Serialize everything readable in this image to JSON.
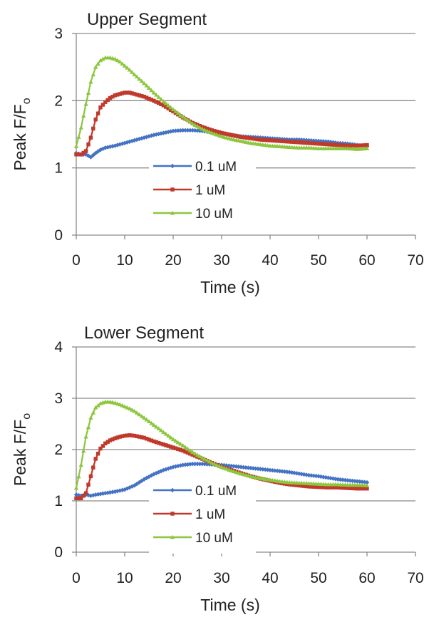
{
  "chart_data": [
    {
      "type": "line",
      "title": "Upper Segment",
      "xlabel": "Time (s)",
      "ylabel": "Peak F/F",
      "ylabel_subscript": "o",
      "xlim": [
        0,
        70
      ],
      "ylim": [
        0,
        3
      ],
      "xticks": [
        0,
        10,
        20,
        30,
        40,
        50,
        60,
        70
      ],
      "yticks": [
        0,
        1,
        2,
        3
      ],
      "grid": "horizontal",
      "legend_position": "center",
      "series": [
        {
          "name": "0.1 uM",
          "color": "#4472c4",
          "marker": "diamond",
          "x": [
            0,
            1,
            2,
            3,
            4,
            5,
            6,
            8,
            10,
            12,
            14,
            16,
            18,
            20,
            22,
            24,
            26,
            28,
            30,
            32,
            34,
            36,
            38,
            40,
            42,
            44,
            46,
            48,
            50,
            52,
            54,
            56,
            58,
            60
          ],
          "y": [
            1.22,
            1.2,
            1.2,
            1.16,
            1.22,
            1.27,
            1.3,
            1.33,
            1.37,
            1.41,
            1.45,
            1.49,
            1.52,
            1.55,
            1.56,
            1.56,
            1.55,
            1.53,
            1.51,
            1.49,
            1.47,
            1.46,
            1.45,
            1.44,
            1.43,
            1.42,
            1.42,
            1.41,
            1.4,
            1.39,
            1.37,
            1.36,
            1.34,
            1.32
          ]
        },
        {
          "name": "1 uM",
          "color": "#c0392b",
          "marker": "square",
          "x": [
            0,
            1,
            2,
            3,
            4,
            5,
            6,
            7,
            8,
            9,
            10,
            11,
            12,
            13,
            14,
            15,
            16,
            18,
            20,
            22,
            24,
            26,
            28,
            30,
            32,
            34,
            36,
            38,
            40,
            42,
            44,
            46,
            48,
            50,
            52,
            54,
            56,
            58,
            60
          ],
          "y": [
            1.2,
            1.2,
            1.25,
            1.45,
            1.72,
            1.9,
            1.98,
            2.04,
            2.08,
            2.1,
            2.12,
            2.12,
            2.1,
            2.08,
            2.06,
            2.03,
            2.0,
            1.93,
            1.84,
            1.75,
            1.67,
            1.61,
            1.56,
            1.52,
            1.49,
            1.46,
            1.44,
            1.42,
            1.41,
            1.4,
            1.39,
            1.38,
            1.37,
            1.36,
            1.35,
            1.34,
            1.33,
            1.33,
            1.34
          ]
        },
        {
          "name": "10 uM",
          "color": "#8dc63f",
          "marker": "triangle",
          "x": [
            0,
            1,
            2,
            3,
            4,
            5,
            6,
            7,
            8,
            9,
            10,
            11,
            12,
            14,
            16,
            18,
            20,
            22,
            24,
            26,
            28,
            30,
            32,
            34,
            36,
            38,
            40,
            42,
            44,
            46,
            48,
            50,
            52,
            54,
            56,
            58,
            60
          ],
          "y": [
            1.32,
            1.6,
            1.95,
            2.28,
            2.5,
            2.6,
            2.64,
            2.64,
            2.62,
            2.58,
            2.52,
            2.46,
            2.39,
            2.26,
            2.12,
            1.99,
            1.87,
            1.76,
            1.66,
            1.58,
            1.52,
            1.47,
            1.43,
            1.4,
            1.37,
            1.35,
            1.33,
            1.32,
            1.31,
            1.3,
            1.3,
            1.29,
            1.29,
            1.29,
            1.29,
            1.28,
            1.29
          ]
        }
      ]
    },
    {
      "type": "line",
      "title": "Lower Segment",
      "xlabel": "Time (s)",
      "ylabel": "Peak F/F",
      "ylabel_subscript": "o",
      "xlim": [
        0,
        70
      ],
      "ylim": [
        0,
        4
      ],
      "xticks": [
        0,
        10,
        20,
        30,
        40,
        50,
        60,
        70
      ],
      "yticks": [
        0,
        1,
        2,
        3,
        4
      ],
      "grid": "horizontal",
      "legend_position": "bottom-center",
      "series": [
        {
          "name": "0.1 uM",
          "color": "#4472c4",
          "marker": "diamond",
          "x": [
            0,
            1,
            2,
            3,
            4,
            6,
            8,
            10,
            12,
            14,
            16,
            18,
            20,
            22,
            24,
            26,
            28,
            30,
            32,
            34,
            36,
            38,
            40,
            42,
            44,
            46,
            48,
            50,
            52,
            54,
            56,
            58,
            60
          ],
          "y": [
            1.12,
            1.1,
            1.12,
            1.1,
            1.12,
            1.15,
            1.18,
            1.22,
            1.3,
            1.42,
            1.52,
            1.6,
            1.66,
            1.7,
            1.72,
            1.72,
            1.71,
            1.7,
            1.68,
            1.66,
            1.64,
            1.62,
            1.6,
            1.58,
            1.56,
            1.53,
            1.5,
            1.48,
            1.45,
            1.42,
            1.4,
            1.38,
            1.36
          ]
        },
        {
          "name": "1 uM",
          "color": "#c0392b",
          "marker": "square",
          "x": [
            0,
            1,
            2,
            3,
            4,
            5,
            6,
            7,
            8,
            9,
            10,
            11,
            12,
            14,
            16,
            18,
            20,
            22,
            24,
            26,
            28,
            30,
            32,
            34,
            36,
            38,
            40,
            42,
            44,
            46,
            48,
            50,
            52,
            54,
            56,
            58,
            60
          ],
          "y": [
            1.05,
            1.05,
            1.15,
            1.48,
            1.82,
            2.02,
            2.12,
            2.18,
            2.22,
            2.25,
            2.27,
            2.28,
            2.27,
            2.23,
            2.16,
            2.1,
            2.04,
            1.98,
            1.9,
            1.82,
            1.74,
            1.66,
            1.6,
            1.54,
            1.48,
            1.43,
            1.39,
            1.35,
            1.32,
            1.3,
            1.28,
            1.27,
            1.26,
            1.26,
            1.25,
            1.24,
            1.24
          ]
        },
        {
          "name": "10 uM",
          "color": "#8dc63f",
          "marker": "triangle",
          "x": [
            0,
            1,
            2,
            3,
            4,
            5,
            6,
            7,
            8,
            9,
            10,
            11,
            12,
            14,
            16,
            18,
            20,
            22,
            24,
            26,
            28,
            30,
            32,
            34,
            36,
            38,
            40,
            42,
            44,
            46,
            48,
            50,
            52,
            54,
            56,
            58,
            60
          ],
          "y": [
            1.25,
            1.7,
            2.25,
            2.62,
            2.82,
            2.9,
            2.93,
            2.93,
            2.91,
            2.88,
            2.84,
            2.8,
            2.75,
            2.62,
            2.48,
            2.34,
            2.2,
            2.08,
            1.95,
            1.84,
            1.74,
            1.66,
            1.59,
            1.53,
            1.48,
            1.44,
            1.41,
            1.38,
            1.36,
            1.35,
            1.34,
            1.33,
            1.32,
            1.32,
            1.31,
            1.31,
            1.3
          ]
        }
      ]
    }
  ]
}
